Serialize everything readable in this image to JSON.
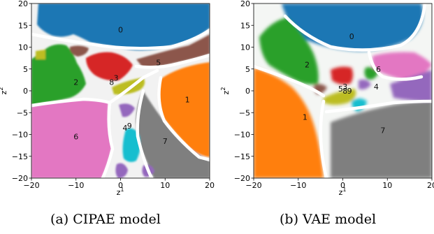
{
  "colors": {
    "0": "#1f77b4",
    "1": "#ff7f0e",
    "2": "#2ca02c",
    "3": "#d62728",
    "4": "#9467bd",
    "5": "#8c564b",
    "6": "#e377c2",
    "7": "#7f7f7f",
    "8": "#bcbd22",
    "9": "#17becf"
  },
  "chart_data": [
    {
      "type": "heatmap",
      "caption": "(a) CIPAE model",
      "xlabel": "z^1",
      "ylabel": "z^2",
      "xlim": [
        -20,
        20
      ],
      "ylim": [
        -20,
        20
      ],
      "xticks": [
        -20,
        -10,
        0,
        10,
        20
      ],
      "yticks": [
        -20,
        -15,
        -10,
        -5,
        0,
        5,
        10,
        15,
        20
      ],
      "regions": [
        {
          "label": "0",
          "x": 0,
          "y": 14
        },
        {
          "label": "1",
          "x": 15,
          "y": -2
        },
        {
          "label": "2",
          "x": -10,
          "y": 2
        },
        {
          "label": "3",
          "x": -1,
          "y": 3
        },
        {
          "label": "4",
          "x": 1,
          "y": -8.5
        },
        {
          "label": "5",
          "x": 8.5,
          "y": 6.5
        },
        {
          "label": "6",
          "x": -10,
          "y": -10.5
        },
        {
          "label": "7",
          "x": 10,
          "y": -11.5
        },
        {
          "label": "8",
          "x": -2,
          "y": 2
        },
        {
          "label": "9",
          "x": 2,
          "y": -8
        }
      ]
    },
    {
      "type": "heatmap",
      "caption": "(b) VAE model",
      "xlabel": "z^1",
      "ylabel": "z^2",
      "xlim": [
        -20,
        20
      ],
      "ylim": [
        -20,
        20
      ],
      "xticks": [
        -20,
        -10,
        0,
        10,
        20
      ],
      "yticks": [
        -20,
        -15,
        -10,
        -5,
        0,
        5,
        10,
        15,
        20
      ],
      "regions": [
        {
          "label": "0",
          "x": 2,
          "y": 12.5
        },
        {
          "label": "1",
          "x": -8.5,
          "y": -6
        },
        {
          "label": "2",
          "x": -8,
          "y": 6
        },
        {
          "label": "3",
          "x": 0.5,
          "y": 1
        },
        {
          "label": "4",
          "x": 7.5,
          "y": 1
        },
        {
          "label": "5",
          "x": -0.5,
          "y": 0.5
        },
        {
          "label": "6",
          "x": 8,
          "y": 5
        },
        {
          "label": "7",
          "x": 9,
          "y": -9
        },
        {
          "label": "8",
          "x": 0.5,
          "y": 0
        },
        {
          "label": "9",
          "x": 1.5,
          "y": 0
        }
      ]
    }
  ]
}
